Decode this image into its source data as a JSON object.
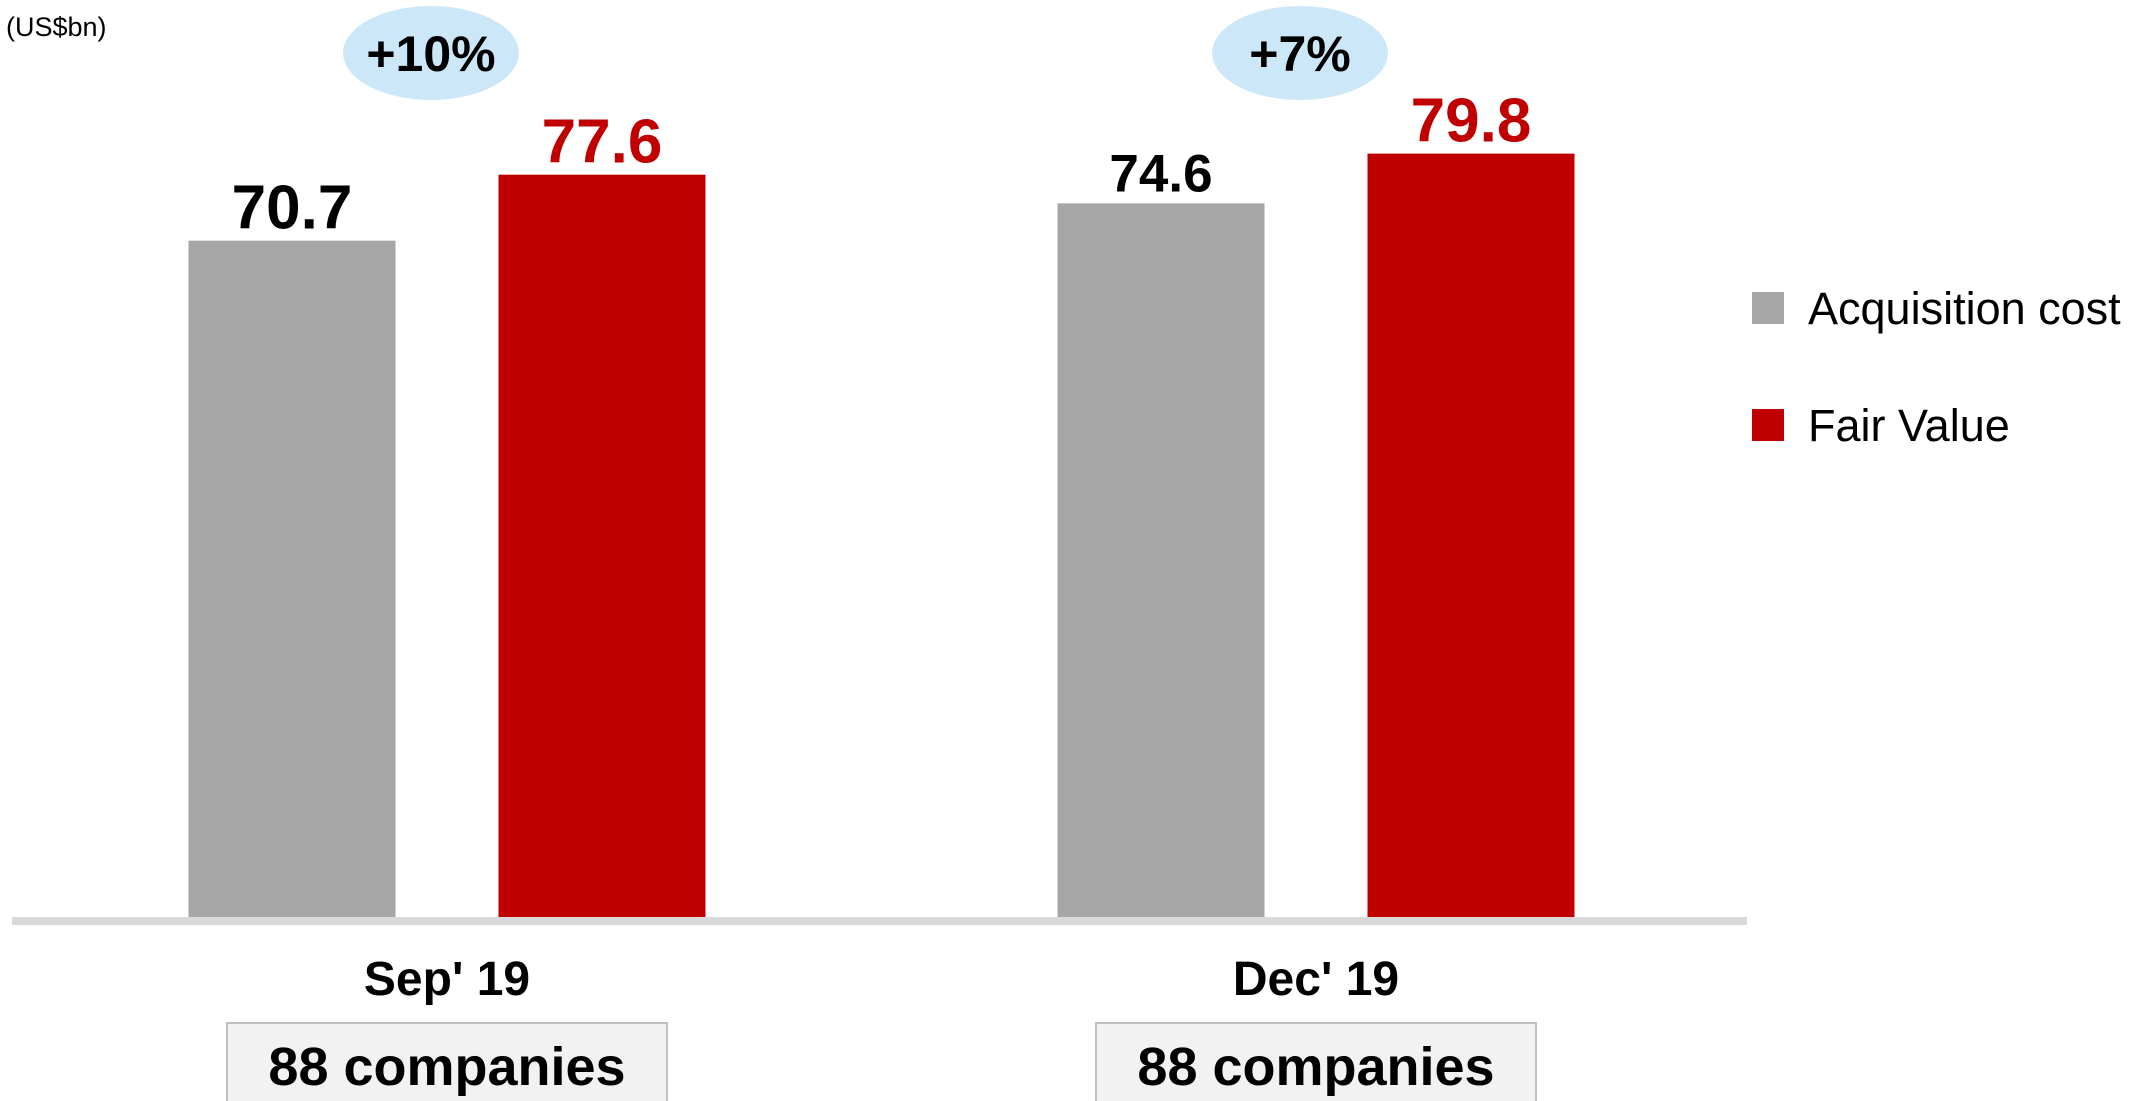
{
  "chart_data": {
    "type": "bar",
    "unit_label": "(US$bn)",
    "categories": [
      "Sep' 19",
      "Dec' 19"
    ],
    "series": [
      {
        "name": "Acquisition cost",
        "values": [
          70.7,
          74.6
        ],
        "color": "#a6a6a6",
        "label_color": "#000000"
      },
      {
        "name": "Fair Value",
        "values": [
          77.6,
          79.8
        ],
        "color": "#c00000",
        "label_color": "#c00000"
      }
    ],
    "value_labels": [
      [
        "70.7",
        "74.6"
      ],
      [
        "77.6",
        "79.8"
      ]
    ],
    "growth_labels": [
      "+10%",
      "+7%"
    ],
    "growth_bubble_color": "#cce8f8",
    "company_counts": [
      "88 companies",
      "88 companies"
    ],
    "axis_color": "#d9d9d9",
    "ylim": [
      0,
      79.8
    ],
    "grid": false,
    "legend": "right"
  }
}
